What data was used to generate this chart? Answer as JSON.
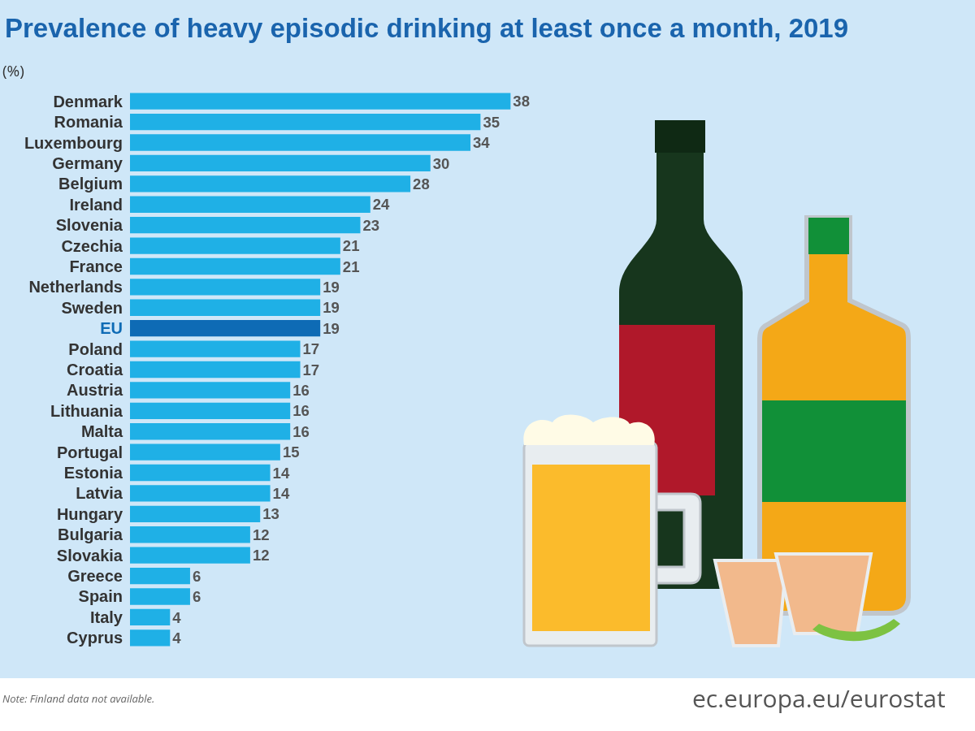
{
  "chart_data": {
    "type": "bar",
    "orientation": "horizontal",
    "data_labels": true,
    "title": "Prevalence of heavy episodic drinking at least once a month, 2019",
    "subtitle": "(%)",
    "categories": [
      "Denmark",
      "Romania",
      "Luxembourg",
      "Germany",
      "Belgium",
      "Ireland",
      "Slovenia",
      "Czechia",
      "France",
      "Netherlands",
      "Sweden",
      "EU",
      "Poland",
      "Croatia",
      "Austria",
      "Lithuania",
      "Malta",
      "Portugal",
      "Estonia",
      "Latvia",
      "Hungary",
      "Bulgaria",
      "Slovakia",
      "Greece",
      "Spain",
      "Italy",
      "Cyprus"
    ],
    "values": [
      38,
      35,
      34,
      30,
      28,
      24,
      23,
      21,
      21,
      19,
      19,
      19,
      17,
      17,
      16,
      16,
      16,
      15,
      14,
      14,
      13,
      12,
      12,
      6,
      6,
      4,
      4
    ],
    "colors": [
      "#1fb0e6",
      "#1fb0e6",
      "#1fb0e6",
      "#1fb0e6",
      "#1fb0e6",
      "#1fb0e6",
      "#1fb0e6",
      "#1fb0e6",
      "#1fb0e6",
      "#1fb0e6",
      "#1fb0e6",
      "#0e6bb5",
      "#1fb0e6",
      "#1fb0e6",
      "#1fb0e6",
      "#1fb0e6",
      "#1fb0e6",
      "#1fb0e6",
      "#1fb0e6",
      "#1fb0e6",
      "#1fb0e6",
      "#1fb0e6",
      "#1fb0e6",
      "#1fb0e6",
      "#1fb0e6",
      "#1fb0e6",
      "#1fb0e6"
    ],
    "grid": false,
    "annotations": [
      "Note: Finland data not available.",
      "ec.europa.eu/eurostat"
    ]
  }
}
